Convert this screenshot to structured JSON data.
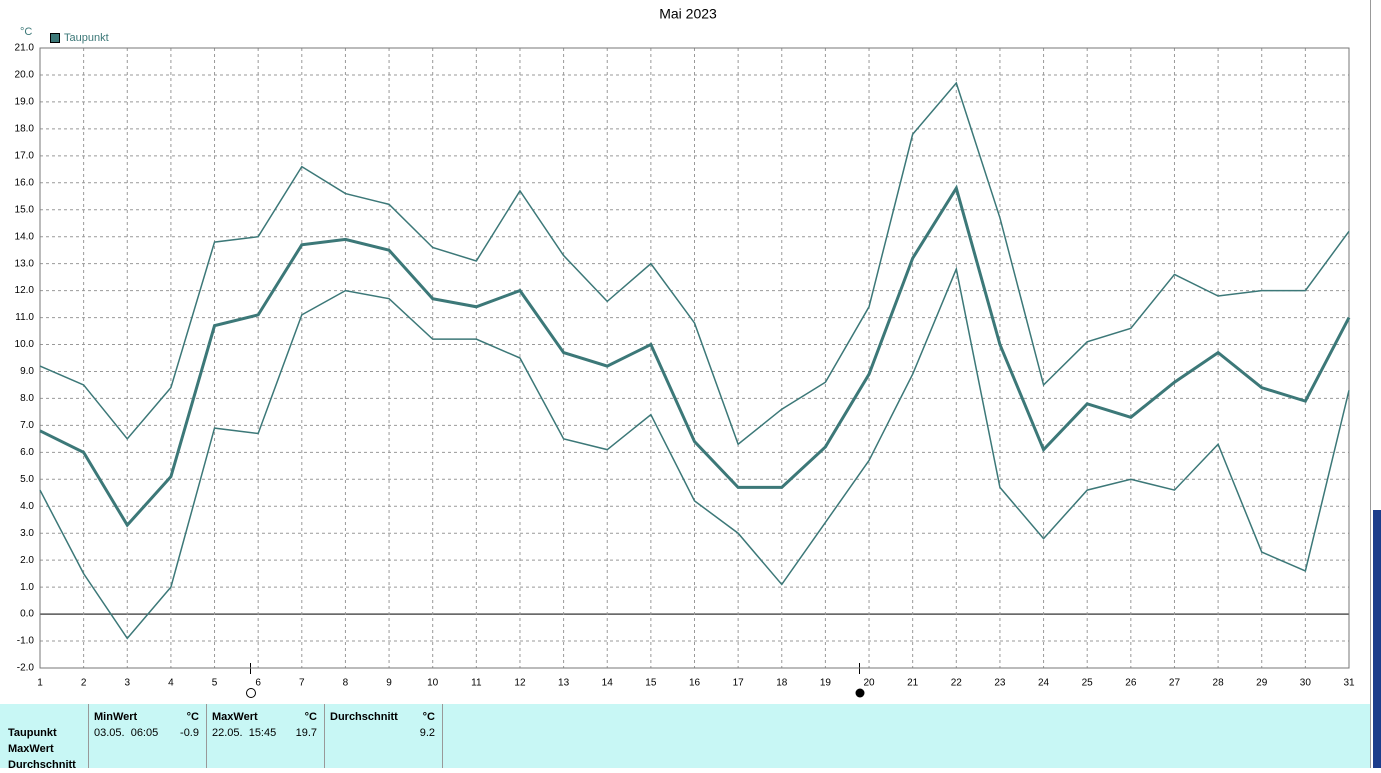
{
  "chart_data": {
    "type": "line",
    "title": "Mai 2023",
    "y_unit": "°C",
    "x": [
      1,
      2,
      3,
      4,
      5,
      6,
      7,
      8,
      9,
      10,
      11,
      12,
      13,
      14,
      15,
      16,
      17,
      18,
      19,
      20,
      21,
      22,
      23,
      24,
      25,
      26,
      27,
      28,
      29,
      30,
      31
    ],
    "xlim": [
      1,
      31
    ],
    "xticks": [
      1,
      2,
      3,
      4,
      5,
      6,
      7,
      8,
      9,
      10,
      11,
      12,
      13,
      14,
      15,
      16,
      17,
      18,
      19,
      20,
      21,
      22,
      23,
      24,
      25,
      26,
      27,
      28,
      29,
      30,
      31
    ],
    "ylim": [
      -2,
      21
    ],
    "yticks": [
      {
        "value": -2,
        "label": "-2.0"
      },
      {
        "value": -1,
        "label": "-1.0"
      },
      {
        "value": 0,
        "label": "0.0"
      },
      {
        "value": 1,
        "label": "1.0"
      },
      {
        "value": 2,
        "label": "2.0"
      },
      {
        "value": 3,
        "label": "3.0"
      },
      {
        "value": 4,
        "label": "4.0"
      },
      {
        "value": 5,
        "label": "5.0"
      },
      {
        "value": 6,
        "label": "6.0"
      },
      {
        "value": 7,
        "label": "7.0"
      },
      {
        "value": 8,
        "label": "8.0"
      },
      {
        "value": 9,
        "label": "9.0"
      },
      {
        "value": 10,
        "label": "10.0"
      },
      {
        "value": 11,
        "label": "11.0"
      },
      {
        "value": 12,
        "label": "12.0"
      },
      {
        "value": 13,
        "label": "13.0"
      },
      {
        "value": 14,
        "label": "14.0"
      },
      {
        "value": 15,
        "label": "15.0"
      },
      {
        "value": 16,
        "label": "16.0"
      },
      {
        "value": 17,
        "label": "17.0"
      },
      {
        "value": 18,
        "label": "18.0"
      },
      {
        "value": 19,
        "label": "19.0"
      },
      {
        "value": 20,
        "label": "20.0"
      },
      {
        "value": 21,
        "label": "21.0"
      }
    ],
    "grid": true,
    "series": [
      {
        "name": "Taupunkt",
        "color": "#3c7878",
        "values": [
          6.8,
          6.0,
          3.3,
          5.1,
          10.7,
          11.1,
          13.7,
          13.9,
          13.5,
          11.7,
          11.4,
          12.0,
          9.7,
          9.2,
          10.0,
          6.4,
          4.7,
          4.7,
          6.2,
          8.9,
          13.2,
          15.8,
          10.0,
          6.1,
          7.8,
          7.3,
          8.6,
          9.7,
          8.4,
          7.9,
          11.0
        ]
      },
      {
        "color": "#3c7878",
        "values": [
          9.2,
          8.5,
          6.5,
          8.4,
          13.8,
          14.0,
          16.6,
          15.6,
          15.2,
          13.6,
          13.1,
          15.7,
          13.3,
          11.6,
          13.0,
          10.8,
          6.3,
          7.6,
          8.6,
          11.4,
          17.8,
          19.7,
          14.7,
          8.5,
          10.1,
          10.6,
          12.6,
          11.8,
          12.0,
          12.0,
          14.2
        ]
      },
      {
        "color": "#3c7878",
        "values": [
          4.6,
          1.5,
          -0.9,
          1.0,
          6.9,
          6.7,
          11.1,
          12.0,
          11.7,
          10.2,
          10.2,
          9.5,
          6.5,
          6.1,
          7.4,
          4.2,
          3.0,
          1.1,
          3.4,
          5.7,
          8.9,
          12.8,
          4.7,
          2.8,
          4.6,
          5.0,
          4.6,
          6.3,
          2.3,
          1.6,
          8.3
        ]
      }
    ]
  },
  "stats": {
    "row_labels": [
      "Taupunkt",
      "MaxWert",
      "Durchschnitt"
    ],
    "columns": [
      {
        "title": "MinWert",
        "unit": "°C",
        "when": "03.05.  06:05",
        "value": -0.9
      },
      {
        "title": "MaxWert",
        "unit": "°C",
        "when": "22.05.  15:45",
        "value": 19.7
      },
      {
        "title": "Durchschnitt",
        "unit": "°C",
        "value": 9.2
      }
    ]
  }
}
